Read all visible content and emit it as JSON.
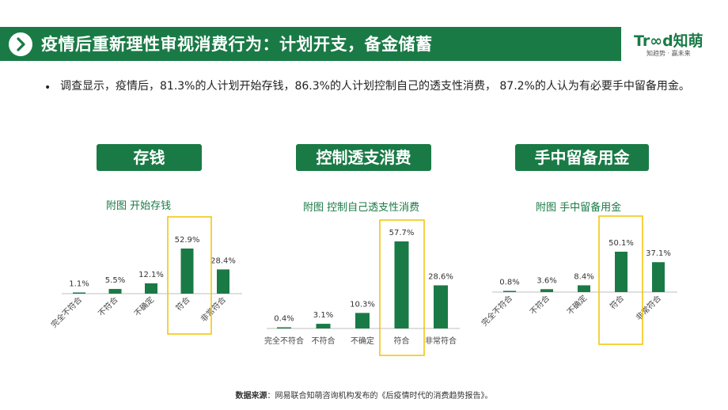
{
  "header": {
    "title": "疫情后重新理性审视消费行为：计划开支，备金储蓄",
    "logo_main": "Tr∞d知萌",
    "logo_sub": "知趋势 · 赢未来"
  },
  "intro": {
    "bullet": "•",
    "text": "调查显示，疫情后，81.3%的人计划开始存钱，86.3%的人计划控制自己的透支性消费， 87.2%的人认为有必要手中留备用金。"
  },
  "panels": [
    {
      "label": "存钱",
      "subtitle": "附图 开始存钱"
    },
    {
      "label": "控制透支消费",
      "subtitle": "附图 控制自己透支性消费"
    },
    {
      "label": "手中留备用金",
      "subtitle": "附图 手中留备用金"
    }
  ],
  "colors": {
    "brand": "#1a7a46",
    "highlight": "#f2c300",
    "axis": "#bfbfbf"
  },
  "chart_data": [
    {
      "type": "bar",
      "title": "附图 开始存钱",
      "categories": [
        "完全不符合",
        "不符合",
        "不确定",
        "符合",
        "非常符合"
      ],
      "values": [
        1.1,
        5.5,
        12.1,
        52.9,
        28.4
      ],
      "value_labels": [
        "1.1%",
        "5.5%",
        "12.1%",
        "52.9%",
        "28.4%"
      ],
      "unit": "%",
      "highlight_category": "符合",
      "label_rotation": "rotated"
    },
    {
      "type": "bar",
      "title": "附图 控制自己透支性消费",
      "categories": [
        "完全不符合",
        "不符合",
        "不确定",
        "符合",
        "非常符合"
      ],
      "values": [
        0.4,
        3.1,
        10.3,
        57.7,
        28.6
      ],
      "value_labels": [
        "0.4%",
        "3.1%",
        "10.3%",
        "57.7%",
        "28.6%"
      ],
      "unit": "%",
      "highlight_category": "符合",
      "label_rotation": "horizontal"
    },
    {
      "type": "bar",
      "title": "附图 手中留备用金",
      "categories": [
        "完全不符合",
        "不符合",
        "不确定",
        "符合",
        "非常符合"
      ],
      "values": [
        0.8,
        3.6,
        8.4,
        50.1,
        37.1
      ],
      "value_labels": [
        "0.8%",
        "3.6%",
        "8.4%",
        "50.1%",
        "37.1%"
      ],
      "unit": "%",
      "highlight_category": "符合",
      "label_rotation": "rotated"
    }
  ],
  "source": {
    "label": "数据来源",
    "text": "：网易联合知萌咨询机构发布的《后疫情时代的消费趋势报告》。"
  }
}
